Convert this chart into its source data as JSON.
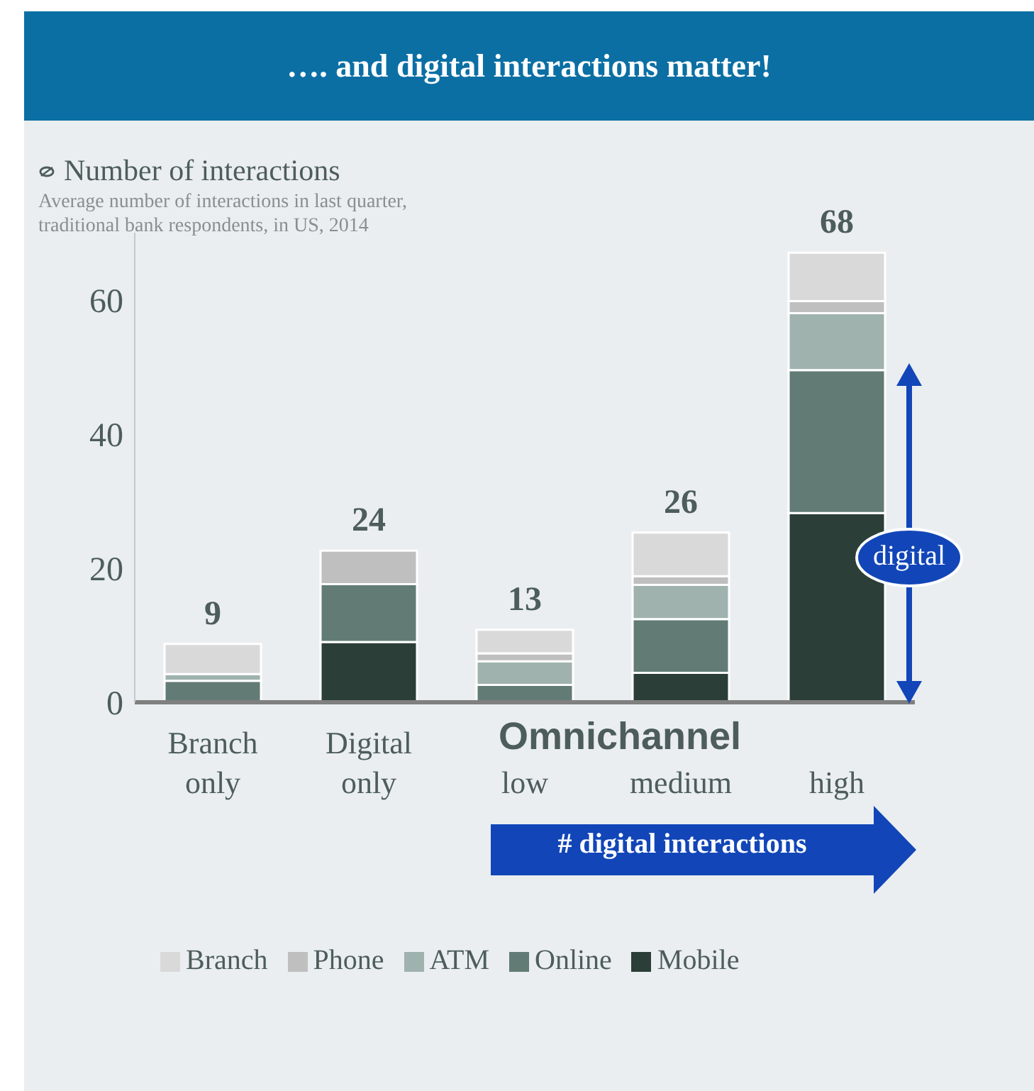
{
  "chart_data": {
    "type": "bar",
    "stacked": true,
    "title": "…. and digital interactions  matter!",
    "ylabel": "Number of interactions",
    "subtitle": "Average number of interactions in last quarter,\ntraditional bank respondents, in US, 2014",
    "categories": [
      "Branch only",
      "Digital only",
      "low",
      "medium",
      "high"
    ],
    "series": [
      {
        "name": "Mobile",
        "color": "#2b3e37",
        "values": [
          0,
          9.0,
          0,
          4.4,
          28.2
        ]
      },
      {
        "name": "Online",
        "color": "#627b75",
        "values": [
          3.2,
          8.6,
          2.6,
          8.0,
          21.3
        ]
      },
      {
        "name": "ATM",
        "color": "#9fb2ae",
        "values": [
          1.0,
          0,
          3.5,
          5.1,
          8.5
        ]
      },
      {
        "name": "Phone",
        "color": "#bfbfbf",
        "values": [
          0,
          5.0,
          1.2,
          1.3,
          1.8
        ]
      },
      {
        "name": "Branch",
        "color": "#d9d9d9",
        "values": [
          4.5,
          0,
          3.5,
          6.5,
          7.2
        ]
      }
    ],
    "totals": [
      "9",
      "24",
      "13",
      "26",
      "68"
    ],
    "ylim": [
      0,
      70
    ],
    "yticks": [
      0,
      20,
      40,
      60
    ],
    "grid": false,
    "legend": "bottom",
    "annotations": [
      "Omnichannel",
      "# digital interactions",
      "digital"
    ]
  }
}
